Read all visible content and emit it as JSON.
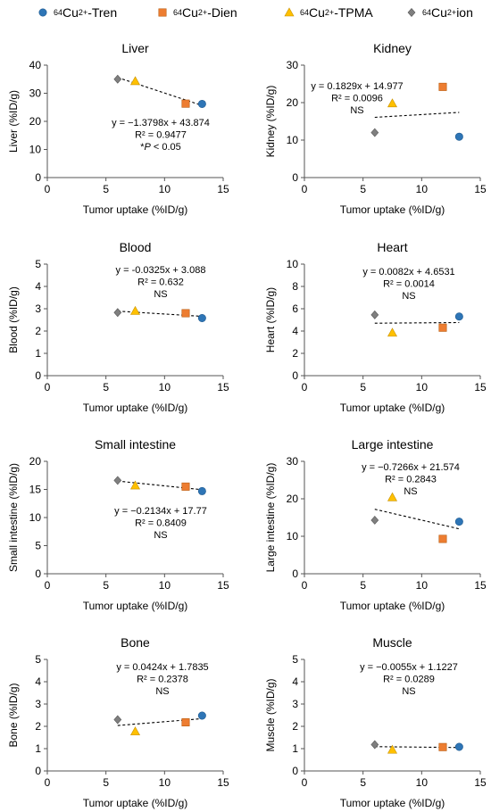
{
  "legend": [
    {
      "iso": "64",
      "charge": "2+",
      "ion": "Cu",
      "suffix": "-Tren",
      "color": "#2E75B6",
      "shape": "circle"
    },
    {
      "iso": "64",
      "charge": "2+",
      "ion": "Cu",
      "suffix": "-Dien",
      "color": "#ED7D31",
      "shape": "square"
    },
    {
      "iso": "64",
      "charge": "2+",
      "ion": "Cu",
      "suffix": "-TPMA",
      "color": "#FFC000",
      "shape": "triangle"
    },
    {
      "iso": "64",
      "charge": "2+",
      "ion": "Cu",
      "suffix": " ion",
      "color": "#7F7F7F",
      "shape": "diamond"
    }
  ],
  "chart_data": [
    {
      "type": "scatter",
      "title": "Liver",
      "xlabel": "Tumor uptake (%ID/g)",
      "ylabel": "Liver (%ID/g)",
      "xlim": [
        0,
        15
      ],
      "xticks": [
        0,
        5,
        10,
        15
      ],
      "ylim": [
        0,
        40
      ],
      "yticks": [
        0,
        10,
        20,
        30,
        40
      ],
      "points": [
        {
          "series": "Tren",
          "x": 13.2,
          "y": 26.2
        },
        {
          "series": "Dien",
          "x": 11.8,
          "y": 26.3
        },
        {
          "series": "TPMA",
          "x": 7.5,
          "y": 34.3
        },
        {
          "series": "ion",
          "x": 6.0,
          "y": 35.0
        }
      ],
      "trend": {
        "slope": -1.3798,
        "intercept": 43.874,
        "xrange": [
          6.0,
          13.2
        ]
      },
      "annotation": [
        "y = −1.3798x + 43.874",
        "R² = 0.9477",
        "*P < 0.05"
      ]
    },
    {
      "type": "scatter",
      "title": "Kidney",
      "xlabel": "Tumor uptake (%ID/g)",
      "ylabel": "Kidney (%ID/g)",
      "xlim": [
        0,
        15
      ],
      "xticks": [
        0,
        5,
        10,
        15
      ],
      "ylim": [
        0,
        30
      ],
      "yticks": [
        0,
        10,
        20,
        30
      ],
      "points": [
        {
          "series": "Tren",
          "x": 13.2,
          "y": 10.9
        },
        {
          "series": "Dien",
          "x": 11.8,
          "y": 24.2
        },
        {
          "series": "TPMA",
          "x": 7.5,
          "y": 19.8
        },
        {
          "series": "ion",
          "x": 6.0,
          "y": 12.0
        }
      ],
      "trend": {
        "slope": 0.1829,
        "intercept": 14.977,
        "xrange": [
          6.0,
          13.2
        ]
      },
      "annotation": [
        "y = 0.1829x + 14.977",
        "R² = 0.0096",
        "NS"
      ]
    },
    {
      "type": "scatter",
      "title": "Blood",
      "xlabel": "Tumor uptake (%ID/g)",
      "ylabel": "Blood (%ID/g)",
      "xlim": [
        0,
        15
      ],
      "xticks": [
        0,
        5,
        10,
        15
      ],
      "ylim": [
        0,
        5
      ],
      "yticks": [
        0,
        1,
        2,
        3,
        4,
        5
      ],
      "points": [
        {
          "series": "Tren",
          "x": 13.2,
          "y": 2.58
        },
        {
          "series": "Dien",
          "x": 11.8,
          "y": 2.8
        },
        {
          "series": "TPMA",
          "x": 7.5,
          "y": 2.9
        },
        {
          "series": "ion",
          "x": 6.0,
          "y": 2.83
        }
      ],
      "trend": {
        "slope": -0.0325,
        "intercept": 3.088,
        "xrange": [
          6.0,
          13.2
        ]
      },
      "annotation": [
        "y = -0.0325x + 3.088",
        "R² = 0.632",
        "NS"
      ]
    },
    {
      "type": "scatter",
      "title": "Heart",
      "xlabel": "Tumor uptake (%ID/g)",
      "ylabel": "Heart (%ID/g)",
      "xlim": [
        0,
        15
      ],
      "xticks": [
        0,
        5,
        10,
        15
      ],
      "ylim": [
        0,
        10
      ],
      "yticks": [
        0,
        2,
        4,
        6,
        8,
        10
      ],
      "points": [
        {
          "series": "Tren",
          "x": 13.2,
          "y": 5.3
        },
        {
          "series": "Dien",
          "x": 11.8,
          "y": 4.3
        },
        {
          "series": "TPMA",
          "x": 7.5,
          "y": 3.85
        },
        {
          "series": "ion",
          "x": 6.0,
          "y": 5.45
        }
      ],
      "trend": {
        "slope": 0.0082,
        "intercept": 4.6531,
        "xrange": [
          6.0,
          13.2
        ]
      },
      "annotation": [
        "y = 0.0082x + 4.6531",
        "R² = 0.0014",
        "NS"
      ]
    },
    {
      "type": "scatter",
      "title": "Small intestine",
      "xlabel": "Tumor uptake (%ID/g)",
      "ylabel": "Small intestine (%ID/g)",
      "xlim": [
        0,
        15
      ],
      "xticks": [
        0,
        5,
        10,
        15
      ],
      "ylim": [
        0,
        20
      ],
      "yticks": [
        0,
        5,
        10,
        15,
        20
      ],
      "points": [
        {
          "series": "Tren",
          "x": 13.2,
          "y": 14.7
        },
        {
          "series": "Dien",
          "x": 11.8,
          "y": 15.5
        },
        {
          "series": "TPMA",
          "x": 7.5,
          "y": 15.7
        },
        {
          "series": "ion",
          "x": 6.0,
          "y": 16.6
        }
      ],
      "trend": {
        "slope": -0.2134,
        "intercept": 17.77,
        "xrange": [
          6.0,
          13.2
        ]
      },
      "annotation": [
        "y = −0.2134x + 17.77",
        "R² = 0.8409",
        "NS"
      ]
    },
    {
      "type": "scatter",
      "title": "Large intestine",
      "xlabel": "Tumor uptake (%ID/g)",
      "ylabel": "Large intestine (%ID/g)",
      "xlim": [
        0,
        15
      ],
      "xticks": [
        0,
        5,
        10,
        15
      ],
      "ylim": [
        0,
        30
      ],
      "yticks": [
        0,
        10,
        20,
        30
      ],
      "points": [
        {
          "series": "Tren",
          "x": 13.2,
          "y": 13.9
        },
        {
          "series": "Dien",
          "x": 11.8,
          "y": 9.3
        },
        {
          "series": "TPMA",
          "x": 7.5,
          "y": 20.4
        },
        {
          "series": "ion",
          "x": 6.0,
          "y": 14.3
        }
      ],
      "trend": {
        "slope": -0.7266,
        "intercept": 21.574,
        "xrange": [
          6.0,
          13.2
        ]
      },
      "annotation": [
        "y = −0.7266x + 21.574",
        "R² = 0.2843",
        "NS"
      ]
    },
    {
      "type": "scatter",
      "title": "Bone",
      "xlabel": "Tumor uptake (%ID/g)",
      "ylabel": "Bone (%ID/g)",
      "xlim": [
        0,
        15
      ],
      "xticks": [
        0,
        5,
        10,
        15
      ],
      "ylim": [
        0,
        5
      ],
      "yticks": [
        0,
        1,
        2,
        3,
        4,
        5
      ],
      "points": [
        {
          "series": "Tren",
          "x": 13.2,
          "y": 2.48
        },
        {
          "series": "Dien",
          "x": 11.8,
          "y": 2.18
        },
        {
          "series": "TPMA",
          "x": 7.5,
          "y": 1.77
        },
        {
          "series": "ion",
          "x": 6.0,
          "y": 2.3
        }
      ],
      "trend": {
        "slope": 0.0424,
        "intercept": 1.7835,
        "xrange": [
          6.0,
          13.2
        ]
      },
      "annotation": [
        "y = 0.0424x + 1.7835",
        "R² = 0.2378",
        "NS"
      ]
    },
    {
      "type": "scatter",
      "title": "Muscle",
      "xlabel": "Tumor uptake (%ID/g)",
      "ylabel": "Muscle (%ID/g)",
      "xlim": [
        0,
        15
      ],
      "xticks": [
        0,
        5,
        10,
        15
      ],
      "ylim": [
        0,
        5
      ],
      "yticks": [
        0,
        1,
        2,
        3,
        4,
        5
      ],
      "points": [
        {
          "series": "Tren",
          "x": 13.2,
          "y": 1.08
        },
        {
          "series": "Dien",
          "x": 11.8,
          "y": 1.07
        },
        {
          "series": "TPMA",
          "x": 7.5,
          "y": 0.95
        },
        {
          "series": "ion",
          "x": 6.0,
          "y": 1.18
        }
      ],
      "trend": {
        "slope": -0.0055,
        "intercept": 1.1227,
        "xrange": [
          6.0,
          13.2
        ]
      },
      "annotation": [
        "y = −0.0055x + 1.1227",
        "R² = 0.0289",
        "NS"
      ]
    }
  ]
}
